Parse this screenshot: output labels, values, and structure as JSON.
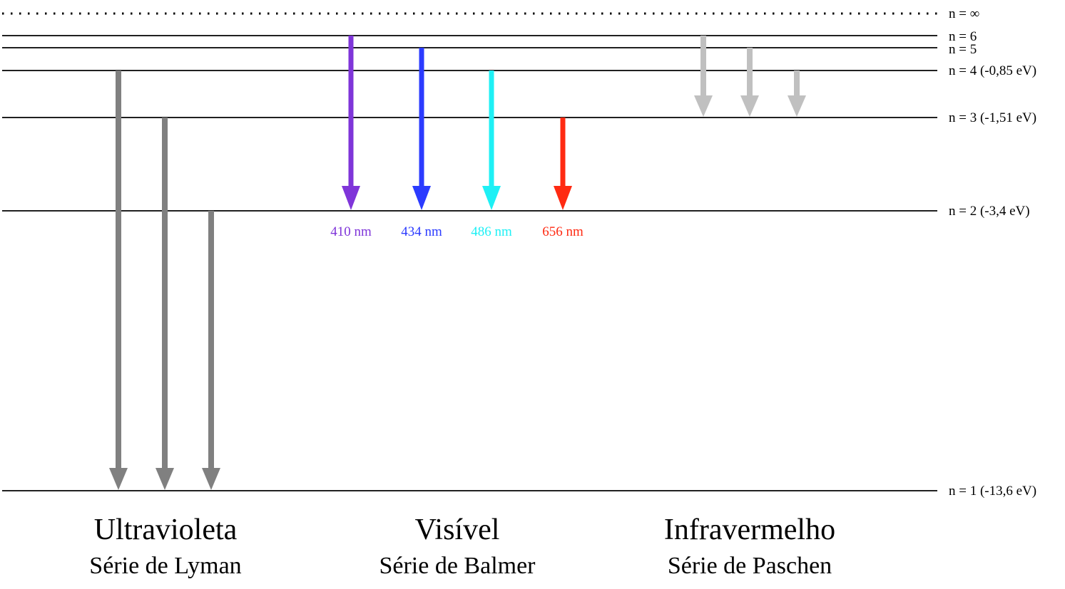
{
  "diagram": {
    "levels": [
      {
        "n": "inf",
        "label": "n = ∞",
        "dotted": true
      },
      {
        "n": 6,
        "label": "n = 6"
      },
      {
        "n": 5,
        "label": "n = 5"
      },
      {
        "n": 4,
        "label": "n = 4 (-0,85 eV)"
      },
      {
        "n": 3,
        "label": "n = 3 (-1,51 eV)"
      },
      {
        "n": 2,
        "label": "n = 2 (-3,4 eV)"
      },
      {
        "n": 1,
        "label": "n = 1 (-13,6 eV)"
      }
    ],
    "series": [
      {
        "id": "lyman",
        "title": "Ultravioleta",
        "subtitle": "Série de Lyman",
        "color": "#808080",
        "transitions": [
          {
            "from": 4,
            "to": 1
          },
          {
            "from": 3,
            "to": 1
          },
          {
            "from": 2,
            "to": 1
          }
        ]
      },
      {
        "id": "balmer",
        "title": "Visível",
        "subtitle": "Série de Balmer",
        "transitions": [
          {
            "from": 6,
            "to": 2,
            "color": "#7f35d9",
            "wavelength": "410 nm"
          },
          {
            "from": 5,
            "to": 2,
            "color": "#2b3bff",
            "wavelength": "434 nm"
          },
          {
            "from": 4,
            "to": 2,
            "color": "#1ef0f5",
            "wavelength": "486 nm"
          },
          {
            "from": 3,
            "to": 2,
            "color": "#ff2a12",
            "wavelength": "656 nm"
          }
        ]
      },
      {
        "id": "paschen",
        "title": "Infravermelho",
        "subtitle": "Série de Paschen",
        "color": "#c0c0c0",
        "transitions": [
          {
            "from": 6,
            "to": 3
          },
          {
            "from": 5,
            "to": 3
          },
          {
            "from": 4,
            "to": 3
          }
        ]
      }
    ]
  }
}
